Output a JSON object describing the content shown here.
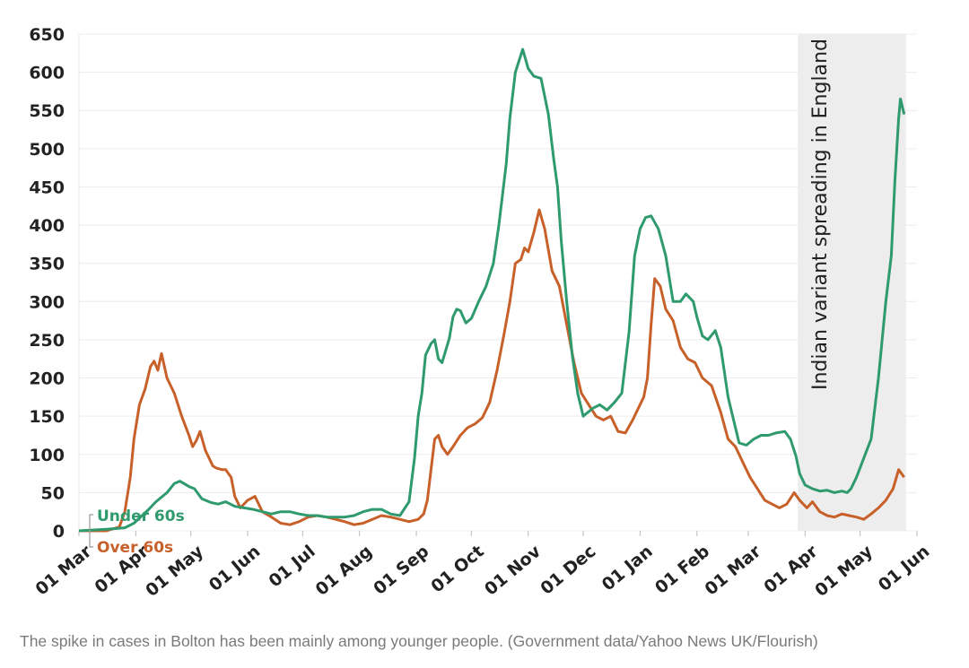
{
  "caption": "The spike in cases in Bolton has been mainly among younger people. (Government data/Yahoo News UK/Flourish)",
  "chart_data": {
    "type": "line",
    "title": "",
    "xlabel": "",
    "ylabel": "",
    "ylim": [
      0,
      650
    ],
    "yticks": [
      0,
      50,
      100,
      150,
      200,
      250,
      300,
      350,
      400,
      450,
      500,
      550,
      600,
      650
    ],
    "ytick_labels": [
      "0",
      "50",
      "100",
      "150",
      "200",
      "250",
      "300",
      "350",
      "400",
      "450",
      "500",
      "550",
      "600",
      "650"
    ],
    "xlim_days": [
      0,
      457
    ],
    "xticks_days": [
      0,
      31,
      61,
      92,
      122,
      153,
      184,
      214,
      245,
      275,
      306,
      337,
      365,
      396,
      426,
      457
    ],
    "xtick_labels": [
      "01 Mar",
      "01 Apr",
      "01 May",
      "01 Jun",
      "01 Jul",
      "01 Aug",
      "01 Sep",
      "01 Oct",
      "01 Nov",
      "01 Dec",
      "01 Jan",
      "01 Feb",
      "01 Mar",
      "01 Apr",
      "01 May",
      "01 Jun"
    ],
    "shaded_region": {
      "x_start_day": 392,
      "x_end_day": 451,
      "label": "Indian variant spreading in England"
    },
    "series": [
      {
        "name": "Under 60s",
        "color": "#2e9a6e",
        "x": [
          0,
          15,
          25,
          30,
          38,
          42,
          48,
          52,
          55,
          60,
          63,
          67,
          72,
          76,
          80,
          85,
          90,
          95,
          100,
          105,
          110,
          115,
          120,
          125,
          130,
          135,
          140,
          145,
          150,
          155,
          160,
          165,
          170,
          175,
          180,
          183,
          185,
          187,
          189,
          192,
          194,
          196,
          198,
          202,
          204,
          206,
          208,
          211,
          214,
          218,
          222,
          226,
          229,
          231,
          233,
          235,
          238,
          242,
          245,
          248,
          252,
          256,
          259,
          261,
          263,
          266,
          269,
          272,
          275,
          280,
          284,
          288,
          292,
          296,
          300,
          303,
          306,
          309,
          312,
          316,
          320,
          324,
          328,
          331,
          333,
          335,
          337,
          340,
          343,
          347,
          350,
          354,
          357,
          360,
          364,
          368,
          372,
          376,
          380,
          385,
          388,
          391,
          393,
          396,
          400,
          404,
          408,
          412,
          416,
          419,
          421,
          424,
          428,
          432,
          436,
          440,
          443,
          445,
          447,
          448,
          450
        ],
        "values": [
          0,
          2,
          4,
          10,
          28,
          38,
          50,
          62,
          65,
          58,
          55,
          42,
          37,
          35,
          38,
          32,
          30,
          28,
          25,
          22,
          25,
          25,
          22,
          20,
          20,
          18,
          18,
          18,
          20,
          25,
          28,
          28,
          22,
          20,
          38,
          95,
          150,
          180,
          230,
          245,
          250,
          225,
          220,
          252,
          280,
          290,
          288,
          272,
          278,
          300,
          320,
          350,
          400,
          440,
          480,
          540,
          600,
          630,
          605,
          595,
          592,
          545,
          485,
          450,
          380,
          300,
          230,
          180,
          150,
          160,
          165,
          158,
          168,
          180,
          260,
          360,
          395,
          410,
          412,
          395,
          360,
          300,
          300,
          310,
          305,
          300,
          280,
          255,
          250,
          262,
          240,
          175,
          145,
          115,
          112,
          120,
          125,
          125,
          128,
          130,
          120,
          98,
          75,
          60,
          55,
          52,
          53,
          50,
          52,
          50,
          55,
          70,
          95,
          120,
          200,
          300,
          360,
          460,
          540,
          565,
          545
        ]
      },
      {
        "name": "Over 60s",
        "color": "#c8602a",
        "x": [
          0,
          15,
          22,
          25,
          28,
          30,
          33,
          36,
          39,
          41,
          43,
          45,
          48,
          52,
          56,
          60,
          62,
          64,
          66,
          69,
          71,
          73,
          75,
          78,
          80,
          83,
          85,
          88,
          92,
          96,
          100,
          105,
          110,
          115,
          120,
          125,
          130,
          135,
          140,
          145,
          150,
          155,
          160,
          165,
          170,
          175,
          180,
          185,
          188,
          190,
          192,
          194,
          196,
          198,
          201,
          204,
          208,
          212,
          216,
          220,
          224,
          228,
          232,
          235,
          238,
          241,
          243,
          245,
          248,
          251,
          254,
          258,
          262,
          266,
          270,
          274,
          278,
          282,
          286,
          290,
          294,
          298,
          302,
          305,
          308,
          310,
          312,
          314,
          317,
          320,
          324,
          328,
          332,
          336,
          340,
          345,
          350,
          354,
          358,
          362,
          366,
          370,
          374,
          378,
          382,
          386,
          390,
          393,
          397,
          400,
          404,
          408,
          412,
          416,
          420,
          424,
          428,
          432,
          436,
          440,
          444,
          447,
          450
        ],
        "values": [
          0,
          0,
          5,
          25,
          70,
          120,
          165,
          185,
          215,
          222,
          210,
          232,
          200,
          180,
          150,
          125,
          110,
          118,
          130,
          105,
          95,
          85,
          82,
          80,
          80,
          70,
          45,
          30,
          40,
          45,
          25,
          18,
          10,
          8,
          12,
          18,
          20,
          18,
          15,
          12,
          8,
          10,
          15,
          20,
          18,
          15,
          12,
          15,
          22,
          40,
          80,
          120,
          125,
          110,
          100,
          110,
          125,
          135,
          140,
          148,
          168,
          210,
          260,
          300,
          350,
          355,
          370,
          365,
          390,
          420,
          395,
          340,
          320,
          270,
          220,
          180,
          165,
          150,
          145,
          150,
          130,
          128,
          145,
          160,
          175,
          200,
          270,
          330,
          320,
          290,
          275,
          240,
          225,
          220,
          200,
          190,
          155,
          120,
          110,
          90,
          70,
          55,
          40,
          35,
          30,
          35,
          50,
          40,
          30,
          38,
          25,
          20,
          18,
          22,
          20,
          18,
          15,
          22,
          30,
          40,
          55,
          80,
          70
        ]
      }
    ]
  }
}
